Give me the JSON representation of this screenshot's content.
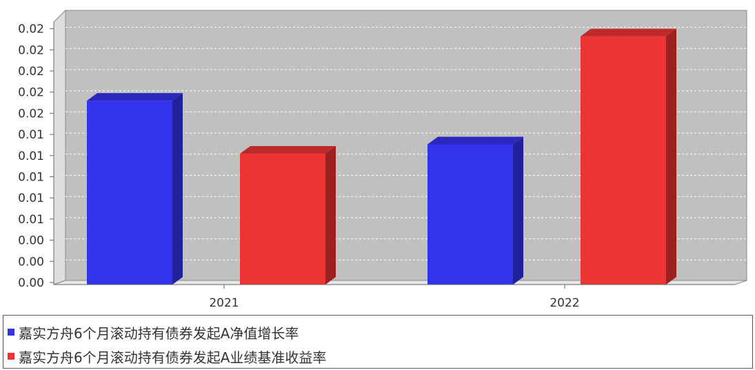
{
  "chart_data": {
    "type": "bar",
    "categories": [
      "2021",
      "2022"
    ],
    "series": [
      {
        "name": "嘉实方舟6个月滚动持有债券发起A净值增长率",
        "color": "#3333ee",
        "values": [
          0.0177,
          0.0135
        ]
      },
      {
        "name": "嘉实方舟6个月滚动持有债券发起A业绩基准收益率",
        "color": "#ee3333",
        "values": [
          0.0126,
          0.0239
        ]
      }
    ],
    "yticks": [
      "0.00",
      "0.00",
      "0.00",
      "0.01",
      "0.01",
      "0.01",
      "0.01",
      "0.01",
      "0.02",
      "0.02",
      "0.02",
      "0.02",
      "0.02"
    ],
    "ylim": [
      0,
      0.0264
    ],
    "grid": true,
    "legend_position": "bottom"
  }
}
